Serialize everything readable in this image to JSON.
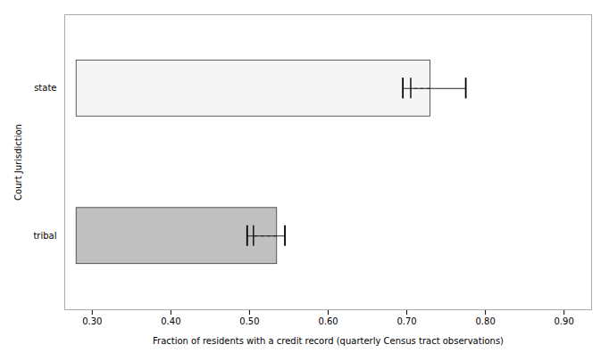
{
  "chart_data": {
    "type": "bar",
    "orientation": "horizontal",
    "xlabel": "Fraction of residents with a credit record (quarterly Census tract observations)",
    "ylabel": "Court Jurisdiction",
    "categories": [
      "state",
      "tribal"
    ],
    "bar_start": [
      0.28,
      0.28
    ],
    "values": [
      0.73,
      0.535
    ],
    "means": [
      0.705,
      0.505
    ],
    "ci_low": [
      0.695,
      0.497
    ],
    "ci_high": [
      0.775,
      0.545
    ],
    "colors": [
      "#f5f5f5",
      "#c0c0c0"
    ],
    "xlim": [
      0.265,
      0.935
    ],
    "xticks": [
      0.3,
      0.4,
      0.5,
      0.6,
      0.7,
      0.8,
      0.9
    ],
    "grid": false
  }
}
